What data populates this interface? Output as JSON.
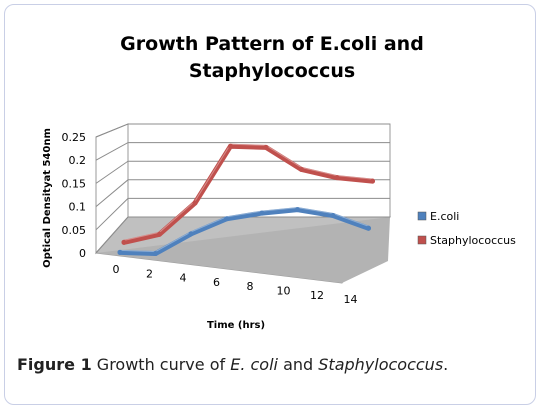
{
  "chart_data": {
    "type": "line",
    "style": "3d-line",
    "title_lines": [
      "Growth Pattern of E.coli and",
      "Staphylococcus"
    ],
    "xlabel": "Time (hrs)",
    "ylabel": "Optical Densityat 540nm",
    "categories": [
      "0",
      "2",
      "4",
      "6",
      "8",
      "10",
      "12",
      "14"
    ],
    "y_ticks": [
      "0",
      "0.05",
      "0.1",
      "0.15",
      "0.2",
      "0.25"
    ],
    "ylim": [
      0,
      0.25
    ],
    "grid": true,
    "legend_position": "right",
    "series": [
      {
        "name": "E.coli",
        "color": "#4f81bd",
        "values": [
          0.01,
          0.01,
          0.055,
          0.09,
          0.105,
          0.115,
          0.105,
          0.08
        ]
      },
      {
        "name": "Staphylococcus",
        "color": "#c0504d",
        "values": [
          0.01,
          0.03,
          0.1,
          0.225,
          0.225,
          0.18,
          0.165,
          0.16
        ]
      }
    ]
  },
  "caption": {
    "label": "Figure 1",
    "text_1": " Growth curve of ",
    "italic_1": "E. coli",
    "text_2": " and ",
    "italic_2": "Staphylococcus",
    "text_3": "."
  }
}
